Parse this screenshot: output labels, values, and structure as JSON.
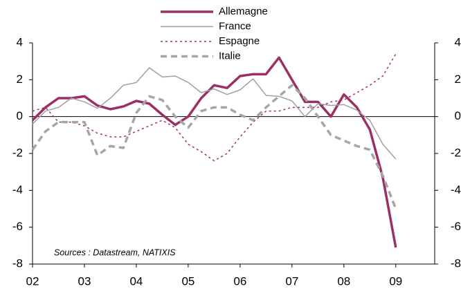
{
  "chart_data": {
    "type": "line",
    "annotation": "Sources : Datastream, NATIXIS",
    "x": [
      2002,
      2002.25,
      2002.5,
      2002.75,
      2003,
      2003.25,
      2003.5,
      2003.75,
      2004,
      2004.25,
      2004.5,
      2004.75,
      2005,
      2005.25,
      2005.5,
      2005.75,
      2006,
      2006.25,
      2006.5,
      2006.75,
      2007,
      2007.25,
      2007.5,
      2007.75,
      2008,
      2008.25,
      2008.5,
      2008.75,
      2009
    ],
    "series": [
      {
        "name": "Allemagne",
        "color": "#9b2f63",
        "line_style": "solid",
        "line_width": 3.5,
        "values": [
          -0.2,
          0.5,
          1.0,
          1.0,
          1.1,
          0.6,
          0.4,
          0.55,
          0.85,
          0.7,
          0.1,
          -0.45,
          0.0,
          1.0,
          1.7,
          1.55,
          2.2,
          2.3,
          2.3,
          3.2,
          2.0,
          0.8,
          0.8,
          0.0,
          1.2,
          0.5,
          -0.7,
          -3.3,
          -7.1
        ]
      },
      {
        "name": "France",
        "color": "#a0a0a0",
        "line_style": "solid",
        "line_width": 1.5,
        "values": [
          -0.4,
          0.3,
          0.5,
          1.0,
          0.8,
          0.45,
          1.0,
          1.7,
          1.85,
          2.65,
          2.15,
          2.2,
          1.85,
          1.3,
          1.5,
          1.2,
          1.45,
          2.05,
          1.15,
          1.1,
          0.85,
          0.0,
          0.7,
          0.6,
          0.65,
          0.35,
          -0.2,
          -1.5,
          -2.3
        ]
      },
      {
        "name": "Espagne",
        "color": "#9b2f63",
        "line_style": "dotted",
        "line_width": 1.5,
        "values": [
          0.3,
          0.5,
          -0.3,
          -0.3,
          -0.5,
          -0.9,
          -1.1,
          -1.1,
          -0.8,
          -0.5,
          -0.2,
          -0.6,
          -1.5,
          -1.9,
          -2.4,
          -2.0,
          -1.1,
          -0.3,
          0.3,
          0.3,
          0.5,
          0.5,
          0.5,
          0.8,
          0.9,
          1.3,
          1.7,
          2.2,
          3.4
        ]
      },
      {
        "name": "Italie",
        "color": "#a6a6a6",
        "line_style": "dashed",
        "line_width": 3.5,
        "values": [
          -1.8,
          -0.8,
          -0.3,
          -0.3,
          -0.3,
          -2.1,
          -1.6,
          -1.7,
          0.2,
          1.1,
          0.9,
          0.0,
          -0.6,
          0.3,
          0.5,
          0.5,
          0.1,
          -0.2,
          0.5,
          1.1,
          1.7,
          1.0,
          0.0,
          -1.0,
          -1.3,
          -1.6,
          -1.8,
          -3.2,
          -5.0
        ]
      }
    ],
    "xlim": [
      2002,
      2009.75
    ],
    "xticks": [
      {
        "value": 2002,
        "label": "02"
      },
      {
        "value": 2003,
        "label": "03"
      },
      {
        "value": 2004,
        "label": "04"
      },
      {
        "value": 2005,
        "label": "05"
      },
      {
        "value": 2006,
        "label": "06"
      },
      {
        "value": 2007,
        "label": "07"
      },
      {
        "value": 2008,
        "label": "08"
      },
      {
        "value": 2009,
        "label": "09"
      }
    ],
    "ylim": [
      -8,
      4
    ],
    "yticks": [
      -8,
      -6,
      -4,
      -2,
      0,
      2,
      4
    ],
    "y2lim": [
      -8,
      4
    ],
    "y2ticks": [
      -8,
      -6,
      -4,
      -2,
      0,
      2,
      4
    ],
    "grid": false,
    "legend": "top"
  }
}
